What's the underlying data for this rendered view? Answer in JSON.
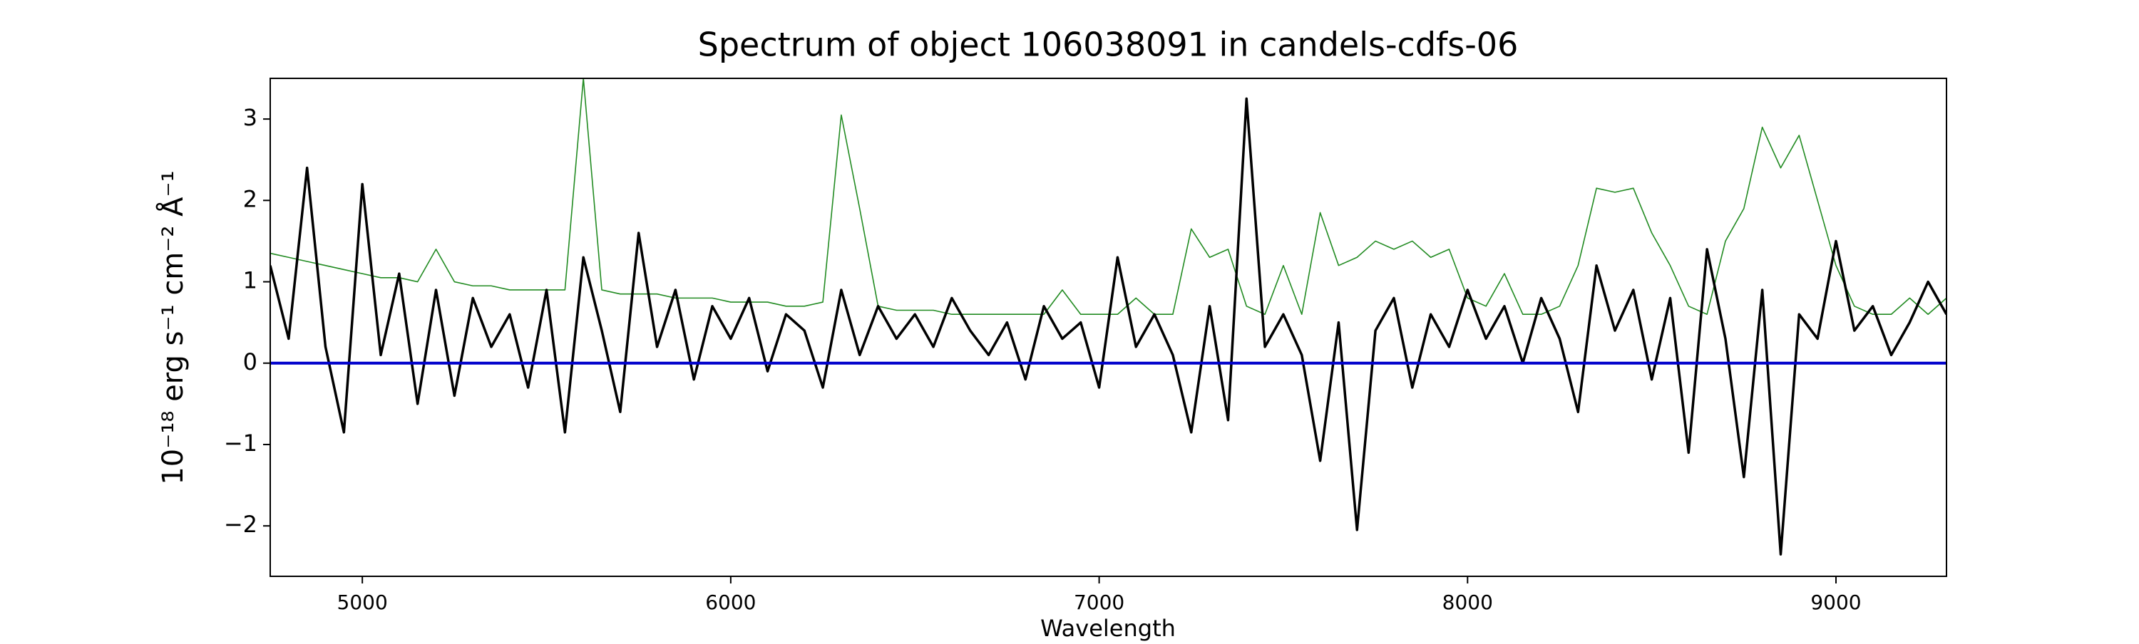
{
  "chart_data": {
    "type": "line",
    "title": "Spectrum of object 106038091 in candels-cdfs-06",
    "x_label": "Wavelength",
    "y_label": "10⁻¹⁸ erg s⁻¹ cm⁻² Å⁻¹",
    "x": [
      4750,
      4800,
      4850,
      4900,
      4950,
      5000,
      5050,
      5100,
      5150,
      5200,
      5250,
      5300,
      5350,
      5400,
      5450,
      5500,
      5550,
      5600,
      5650,
      5700,
      5750,
      5800,
      5850,
      5900,
      5950,
      6000,
      6050,
      6100,
      6150,
      6200,
      6250,
      6300,
      6350,
      6400,
      6450,
      6500,
      6550,
      6600,
      6650,
      6700,
      6750,
      6800,
      6850,
      6900,
      6950,
      7000,
      7050,
      7100,
      7150,
      7200,
      7250,
      7300,
      7350,
      7400,
      7450,
      7500,
      7550,
      7600,
      7650,
      7700,
      7750,
      7800,
      7850,
      7900,
      7950,
      8000,
      8050,
      8100,
      8150,
      8200,
      8250,
      8300,
      8350,
      8400,
      8450,
      8500,
      8550,
      8600,
      8650,
      8700,
      8750,
      8800,
      8850,
      8900,
      8950,
      9000,
      9050,
      9100,
      9150,
      9200,
      9250,
      9300
    ],
    "series": [
      {
        "color": "#228b22",
        "values": [
          1.35,
          1.3,
          1.25,
          1.2,
          1.15,
          1.1,
          1.05,
          1.05,
          1.0,
          1.4,
          1.0,
          0.95,
          0.95,
          0.9,
          0.9,
          0.9,
          0.9,
          3.5,
          0.9,
          0.85,
          0.85,
          0.85,
          0.8,
          0.8,
          0.8,
          0.75,
          0.75,
          0.75,
          0.7,
          0.7,
          0.75,
          3.05,
          1.9,
          0.7,
          0.65,
          0.65,
          0.65,
          0.6,
          0.6,
          0.6,
          0.6,
          0.6,
          0.6,
          0.9,
          0.6,
          0.6,
          0.6,
          0.8,
          0.6,
          0.6,
          1.65,
          1.3,
          1.4,
          0.7,
          0.6,
          1.2,
          0.6,
          1.85,
          1.2,
          1.3,
          1.5,
          1.4,
          1.5,
          1.3,
          1.4,
          0.8,
          0.7,
          1.1,
          0.6,
          0.6,
          0.7,
          1.2,
          2.15,
          2.1,
          2.15,
          1.6,
          1.2,
          0.7,
          0.6,
          1.5,
          1.9,
          2.9,
          2.4,
          2.8,
          2.0,
          1.2,
          0.7,
          0.6,
          0.6,
          0.8,
          0.6,
          0.8
        ]
      },
      {
        "color": "#000000",
        "values": [
          1.2,
          0.3,
          2.4,
          0.2,
          -0.85,
          2.2,
          0.1,
          1.1,
          -0.5,
          0.9,
          -0.4,
          0.8,
          0.2,
          0.6,
          -0.3,
          0.9,
          -0.85,
          1.3,
          0.4,
          -0.6,
          1.6,
          0.2,
          0.9,
          -0.2,
          0.7,
          0.3,
          0.8,
          -0.1,
          0.6,
          0.4,
          -0.3,
          0.9,
          0.1,
          0.7,
          0.3,
          0.6,
          0.2,
          0.8,
          0.4,
          0.1,
          0.5,
          -0.2,
          0.7,
          0.3,
          0.5,
          -0.3,
          1.3,
          0.2,
          0.6,
          0.1,
          -0.85,
          0.7,
          -0.7,
          3.25,
          0.2,
          0.6,
          0.1,
          -1.2,
          0.5,
          -2.05,
          0.4,
          0.8,
          -0.3,
          0.6,
          0.2,
          0.9,
          0.3,
          0.7,
          0.0,
          0.8,
          0.3,
          -0.6,
          1.2,
          0.4,
          0.9,
          -0.2,
          0.8,
          -1.1,
          1.4,
          0.3,
          -1.4,
          0.9,
          -2.35,
          0.6,
          0.3,
          1.5,
          0.4,
          0.7,
          0.1,
          0.5,
          1.0,
          0.6
        ]
      }
    ],
    "zero_line": {
      "value": 0,
      "color": "#0000cc"
    },
    "xlim": [
      4750,
      9300
    ],
    "ylim": [
      -2.62,
      3.5
    ],
    "xticks": [
      5000,
      6000,
      7000,
      8000,
      9000
    ],
    "yticks": [
      {
        "value": -2,
        "label": "−2"
      },
      {
        "value": -1,
        "label": "−1"
      },
      0,
      1,
      2,
      3
    ]
  }
}
